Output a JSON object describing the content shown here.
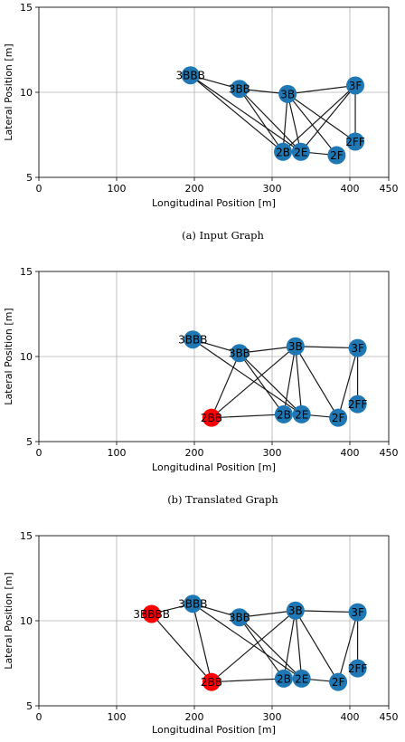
{
  "colors": {
    "node_default": "#1f77b4",
    "node_added": "#ff0000",
    "edge": "#1a1a1a",
    "grid": "#b0b0b0"
  },
  "chart_data": [
    {
      "type": "scatter",
      "caption": "(a) Input Graph",
      "xlabel": "Longitudinal Position [m]",
      "ylabel": "Lateral Position [m]",
      "xlim": [
        0,
        450
      ],
      "ylim": [
        5,
        15
      ],
      "xticks": [
        0,
        100,
        200,
        300,
        400,
        450
      ],
      "yticks": [
        5,
        10,
        15
      ],
      "grid": true,
      "nodes": [
        {
          "label": "3BBB",
          "x": 195,
          "y": 11.0,
          "color": "node_default"
        },
        {
          "label": "3BB",
          "x": 258,
          "y": 10.2,
          "color": "node_default"
        },
        {
          "label": "3B",
          "x": 320,
          "y": 9.9,
          "color": "node_default"
        },
        {
          "label": "3F",
          "x": 407,
          "y": 10.4,
          "color": "node_default"
        },
        {
          "label": "2B",
          "x": 314,
          "y": 6.5,
          "color": "node_default"
        },
        {
          "label": "2E",
          "x": 337,
          "y": 6.5,
          "color": "node_default"
        },
        {
          "label": "2F",
          "x": 383,
          "y": 6.3,
          "color": "node_default"
        },
        {
          "label": "2FF",
          "x": 407,
          "y": 7.1,
          "color": "node_default"
        }
      ],
      "edges": [
        [
          "3BBB",
          "3BB"
        ],
        [
          "3BBB",
          "2B"
        ],
        [
          "3BBB",
          "2E"
        ],
        [
          "3BB",
          "3B"
        ],
        [
          "3BB",
          "2B"
        ],
        [
          "3BB",
          "2E"
        ],
        [
          "3B",
          "3F"
        ],
        [
          "3B",
          "2B"
        ],
        [
          "3B",
          "2E"
        ],
        [
          "3B",
          "2F"
        ],
        [
          "3B",
          "2FF"
        ],
        [
          "3F",
          "2B"
        ],
        [
          "3F",
          "2E"
        ],
        [
          "3F",
          "2FF"
        ],
        [
          "2B",
          "2E"
        ],
        [
          "2E",
          "2F"
        ]
      ]
    },
    {
      "type": "scatter",
      "caption": "(b) Translated Graph",
      "xlabel": "Longitudinal Position [m]",
      "ylabel": "Lateral Position [m]",
      "xlim": [
        0,
        450
      ],
      "ylim": [
        5,
        15
      ],
      "xticks": [
        0,
        100,
        200,
        300,
        400,
        450
      ],
      "yticks": [
        5,
        10,
        15
      ],
      "grid": true,
      "nodes": [
        {
          "label": "3BBB",
          "x": 198,
          "y": 11.0,
          "color": "node_default"
        },
        {
          "label": "3BB",
          "x": 258,
          "y": 10.2,
          "color": "node_default"
        },
        {
          "label": "3B",
          "x": 330,
          "y": 10.6,
          "color": "node_default"
        },
        {
          "label": "3F",
          "x": 410,
          "y": 10.5,
          "color": "node_default"
        },
        {
          "label": "2BB",
          "x": 222,
          "y": 6.4,
          "color": "node_added"
        },
        {
          "label": "2B",
          "x": 315,
          "y": 6.6,
          "color": "node_default"
        },
        {
          "label": "2E",
          "x": 338,
          "y": 6.6,
          "color": "node_default"
        },
        {
          "label": "2F",
          "x": 385,
          "y": 6.4,
          "color": "node_default"
        },
        {
          "label": "2FF",
          "x": 410,
          "y": 7.2,
          "color": "node_default"
        }
      ],
      "edges": [
        [
          "3BBB",
          "3BB"
        ],
        [
          "3BBB",
          "2E"
        ],
        [
          "3BB",
          "3B"
        ],
        [
          "3BB",
          "2BB"
        ],
        [
          "3BB",
          "2B"
        ],
        [
          "3BB",
          "2E"
        ],
        [
          "3B",
          "3F"
        ],
        [
          "3B",
          "2BB"
        ],
        [
          "3B",
          "2B"
        ],
        [
          "3B",
          "2E"
        ],
        [
          "3B",
          "2F"
        ],
        [
          "3F",
          "2F"
        ],
        [
          "3F",
          "2FF"
        ],
        [
          "2BB",
          "2B"
        ],
        [
          "2B",
          "2E"
        ],
        [
          "2E",
          "2F"
        ]
      ]
    },
    {
      "type": "scatter",
      "caption": "",
      "xlabel": "Longitudinal Position [m]",
      "ylabel": "Lateral Position [m]",
      "xlim": [
        0,
        450
      ],
      "ylim": [
        5,
        15
      ],
      "xticks": [
        0,
        100,
        200,
        300,
        400,
        450
      ],
      "yticks": [
        5,
        10,
        15
      ],
      "grid": true,
      "nodes": [
        {
          "label": "3BBBB",
          "x": 145,
          "y": 10.4,
          "color": "node_added"
        },
        {
          "label": "3BBB",
          "x": 198,
          "y": 11.0,
          "color": "node_default"
        },
        {
          "label": "3BB",
          "x": 258,
          "y": 10.2,
          "color": "node_default"
        },
        {
          "label": "3B",
          "x": 330,
          "y": 10.6,
          "color": "node_default"
        },
        {
          "label": "3F",
          "x": 410,
          "y": 10.5,
          "color": "node_default"
        },
        {
          "label": "2BB",
          "x": 222,
          "y": 6.4,
          "color": "node_added"
        },
        {
          "label": "2B",
          "x": 315,
          "y": 6.6,
          "color": "node_default"
        },
        {
          "label": "2E",
          "x": 338,
          "y": 6.6,
          "color": "node_default"
        },
        {
          "label": "2F",
          "x": 385,
          "y": 6.4,
          "color": "node_default"
        },
        {
          "label": "2FF",
          "x": 410,
          "y": 7.2,
          "color": "node_default"
        }
      ],
      "edges": [
        [
          "3BBBB",
          "3BBB"
        ],
        [
          "3BBBB",
          "2BB"
        ],
        [
          "3BBB",
          "3BB"
        ],
        [
          "3BBB",
          "2BB"
        ],
        [
          "3BBB",
          "2E"
        ],
        [
          "3BB",
          "3B"
        ],
        [
          "3BB",
          "2B"
        ],
        [
          "3BB",
          "2E"
        ],
        [
          "3B",
          "3F"
        ],
        [
          "3B",
          "2BB"
        ],
        [
          "3B",
          "2B"
        ],
        [
          "3B",
          "2E"
        ],
        [
          "3B",
          "2F"
        ],
        [
          "3F",
          "2F"
        ],
        [
          "3F",
          "2FF"
        ],
        [
          "2BB",
          "2B"
        ],
        [
          "2B",
          "2E"
        ],
        [
          "2E",
          "2F"
        ]
      ]
    }
  ]
}
